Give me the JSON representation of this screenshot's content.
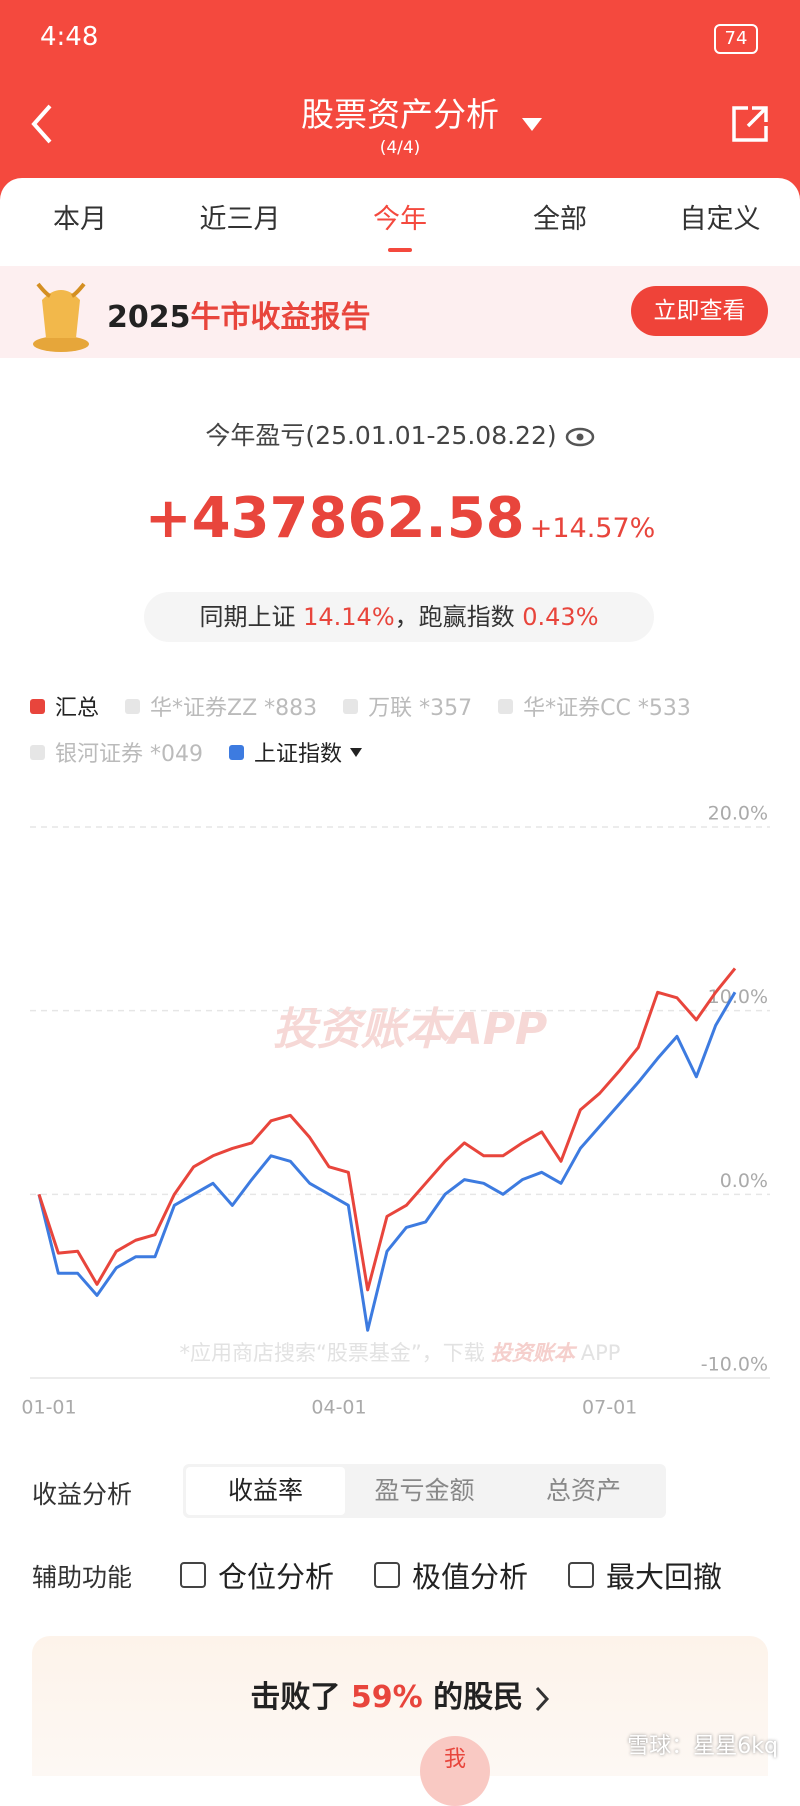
{
  "status_bar": {
    "time": "4:48",
    "battery": "74"
  },
  "header": {
    "title": "股票资产分析",
    "subtitle": "(4/4)"
  },
  "tabs": [
    {
      "label": "本月",
      "active": false
    },
    {
      "label": "近三月",
      "active": false
    },
    {
      "label": "今年",
      "active": true
    },
    {
      "label": "全部",
      "active": false
    },
    {
      "label": "自定义",
      "active": false
    }
  ],
  "banner": {
    "year": "2025",
    "title": "牛市收益报告",
    "button": "立即查看"
  },
  "summary": {
    "period": "今年盈亏(25.01.01-25.08.22)",
    "amount": "+437862.58",
    "percent": "+14.57%",
    "compare_label": "同期上证",
    "index_return": "14.14%",
    "beat_label": "，跑赢指数",
    "excess": "0.43%"
  },
  "chart_data": {
    "type": "line",
    "categories": [
      "01-01",
      null,
      null,
      null,
      null,
      null,
      null,
      null,
      null,
      null,
      null,
      null,
      null,
      null,
      null,
      "04-01",
      null,
      null,
      null,
      null,
      null,
      null,
      null,
      null,
      null,
      null,
      null,
      null,
      null,
      "07-01",
      null,
      null,
      null,
      null,
      null,
      null,
      null
    ],
    "series": [
      {
        "name": "汇总",
        "color": "#e8453c",
        "values": [
          0,
          -3.2,
          -3.1,
          -4.9,
          -3.1,
          -2.5,
          -2.2,
          0,
          1.5,
          2.1,
          2.5,
          2.8,
          4.0,
          4.3,
          3.1,
          1.5,
          1.2,
          -5.2,
          -1.2,
          -0.6,
          0.6,
          1.8,
          2.8,
          2.1,
          2.1,
          2.8,
          3.4,
          1.8,
          4.6,
          5.5,
          6.7,
          8.0,
          11.0,
          10.7,
          9.5,
          11.0,
          12.3
        ]
      },
      {
        "name": "上证指数",
        "color": "#3d7be0",
        "values": [
          0,
          -4.3,
          -4.3,
          -5.5,
          -4.0,
          -3.4,
          -3.4,
          -0.6,
          0,
          0.6,
          -0.6,
          0.8,
          2.1,
          1.8,
          0.6,
          0,
          -0.6,
          -7.4,
          -3.1,
          -1.8,
          -1.5,
          0,
          0.8,
          0.6,
          0,
          0.8,
          1.2,
          0.6,
          2.5,
          3.7,
          4.9,
          6.1,
          7.4,
          8.6,
          6.4,
          9.2,
          11.0
        ]
      }
    ],
    "hidden_series": [
      "华*证券ZZ *883",
      "万联 *357",
      "华*证券CC *533",
      "银河证券 *049"
    ],
    "ylim": [
      -10,
      20
    ],
    "yticks": [
      {
        "value": -10,
        "label": "-10.0%"
      },
      {
        "value": 0,
        "label": "0.0%"
      },
      {
        "value": 10,
        "label": "10.0%"
      },
      {
        "value": 20,
        "label": "20.0%"
      }
    ],
    "grid": true,
    "watermark": "投资账本APP",
    "footnote": "*应用商店搜索“股票基金”，下载",
    "footnote_brand": "投资账本",
    "footnote_app": "APP"
  },
  "analysis": {
    "label": "收益分析",
    "options": [
      {
        "label": "收益率",
        "active": true
      },
      {
        "label": "盈亏金额",
        "active": false
      },
      {
        "label": "总资产",
        "active": false
      }
    ]
  },
  "tools": {
    "label": "辅助功能",
    "options": [
      "仓位分析",
      "极值分析",
      "最大回撤"
    ]
  },
  "rank": {
    "prefix": "击败了",
    "value": "59%",
    "suffix": "的股民",
    "me": "我"
  },
  "credit": "雪球：星星6kq"
}
